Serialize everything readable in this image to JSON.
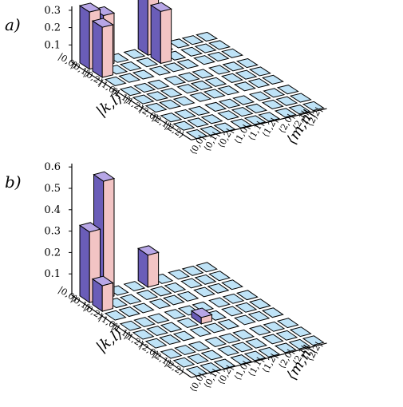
{
  "chart_data": [
    {
      "type": "bar3d",
      "panel_label": "a)",
      "row_axis_label": "|k,l⟩",
      "col_axis_label": "⟨m,n|",
      "row_labels": [
        "|0,0⟩",
        "|0,1⟩",
        "|0,2⟩",
        "|1,0⟩",
        "|1,1⟩",
        "|1,2⟩",
        "|2,0⟩",
        "|2,1⟩",
        "|2,2⟩"
      ],
      "col_labels": [
        "⟨0,0|",
        "⟨0,1|",
        "⟨0,2|",
        "⟨1,0|",
        "⟨1,1|",
        "⟨1,2|",
        "⟨2,0|",
        "⟨2,1|",
        "⟨2,2|"
      ],
      "z_ticks": [
        "0.1",
        "0.2",
        "0.3"
      ],
      "zlim": [
        0,
        0.35
      ],
      "bar_colors": {
        "front": "#f2c4c4",
        "side": "#6a5db8",
        "top": "#b7a6e6",
        "tile": "#bfe3f7"
      },
      "bars": [
        {
          "row": 0,
          "col": 0,
          "value": 0.33
        },
        {
          "row": 0,
          "col": 1,
          "value": 0.29
        },
        {
          "row": 1,
          "col": 0,
          "value": 0.29
        },
        {
          "row": 0,
          "col": 4,
          "value": 0.33
        },
        {
          "row": 1,
          "col": 4,
          "value": 0.3
        }
      ]
    },
    {
      "type": "bar3d",
      "panel_label": "b)",
      "row_axis_label": "|k,l⟩",
      "col_axis_label": "⟨m,n|",
      "row_labels": [
        "|0,0⟩",
        "|0,1⟩",
        "|0,2⟩",
        "|1,0⟩",
        "|1,1⟩",
        "|1,2⟩",
        "|2,0⟩",
        "|2,1⟩",
        "|2,2⟩"
      ],
      "col_labels": [
        "⟨0,0|",
        "⟨0,1|",
        "⟨0,2|",
        "⟨1,0|",
        "⟨1,1|",
        "⟨1,2|",
        "⟨2,0|",
        "⟨2,1|",
        "⟨2,2|"
      ],
      "z_ticks": [
        "0.1",
        "0.2",
        "0.3",
        "0.4",
        "0.5",
        "0.6"
      ],
      "zlim": [
        0,
        0.6
      ],
      "bar_colors": {
        "front": "#f2c4c4",
        "side": "#6a5db8",
        "top": "#b7a6e6",
        "tile": "#bfe3f7"
      },
      "bars": [
        {
          "row": 0,
          "col": 0,
          "value": 0.33
        },
        {
          "row": 0,
          "col": 1,
          "value": 0.55
        },
        {
          "row": 1,
          "col": 0,
          "value": 0.12
        },
        {
          "row": 0,
          "col": 4,
          "value": 0.15
        },
        {
          "row": 4,
          "col": 4,
          "value": 0.03
        }
      ]
    }
  ]
}
